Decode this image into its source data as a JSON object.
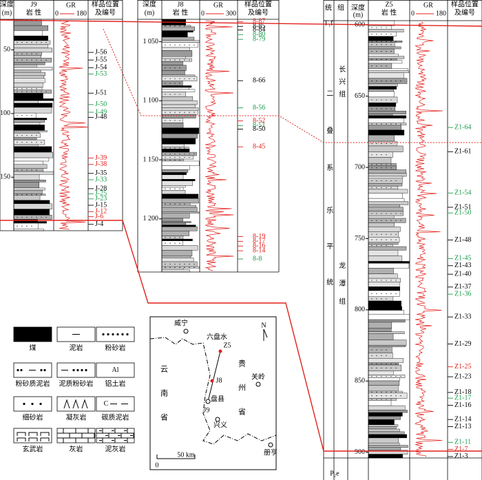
{
  "wells": [
    {
      "name": "J9",
      "depth_label": [
        "深度",
        "(m)"
      ],
      "lith_label": "岩 性",
      "gr_label": "GR",
      "gr_scale": [
        "0",
        "180"
      ],
      "sample_label": [
        "样品位置",
        "及编号"
      ],
      "ylim": [
        26,
        192
      ],
      "yticks": [
        50,
        100,
        150
      ],
      "samples": [
        {
          "id": "J-56",
          "depth": 52,
          "color": "#000000"
        },
        {
          "id": "J-55",
          "depth": 58,
          "color": "#000000"
        },
        {
          "id": "J-54",
          "depth": 64,
          "color": "#000000"
        },
        {
          "id": "J-53",
          "depth": 69,
          "color": "#1a9a4a"
        },
        {
          "id": "J-51",
          "depth": 84,
          "color": "#000000"
        },
        {
          "id": "J-50",
          "depth": 93,
          "color": "#1a9a4a"
        },
        {
          "id": "J-49",
          "depth": 99,
          "color": "#1a9a4a"
        },
        {
          "id": "J-48",
          "depth": 103,
          "color": "#000000"
        },
        {
          "id": "J-39",
          "depth": 135,
          "color": "#e0201c"
        },
        {
          "id": "J-38",
          "depth": 140,
          "color": "#e0201c"
        },
        {
          "id": "J-35",
          "depth": 147,
          "color": "#000000"
        },
        {
          "id": "J-33",
          "depth": 152,
          "color": "#1a9a4a"
        },
        {
          "id": "J-28",
          "depth": 159,
          "color": "#000000"
        },
        {
          "id": "J-25",
          "depth": 163,
          "color": "#1a9a4a"
        },
        {
          "id": "J-23",
          "depth": 167,
          "color": "#1a9a4a"
        },
        {
          "id": "J-15",
          "depth": 172,
          "color": "#000000"
        },
        {
          "id": "J-12",
          "depth": 177,
          "color": "#e0201c"
        },
        {
          "id": "J-6",
          "depth": 181,
          "color": "#e0201c"
        },
        {
          "id": "J-4",
          "depth": 187,
          "color": "#000000"
        }
      ]
    },
    {
      "name": "J8",
      "depth_label": [
        "深度",
        "(m)"
      ],
      "lith_label": "岩 性",
      "gr_label": "GR",
      "gr_scale": [
        "0",
        "300"
      ],
      "sample_label": [
        "样品位置",
        "及编号"
      ],
      "ylim": [
        1031,
        1245
      ],
      "yticks": [
        {
          "value": 1050,
          "label": "1 050"
        },
        {
          "value": 1100,
          "label": "1 100"
        },
        {
          "value": 1150,
          "label": "1 150"
        },
        {
          "value": 1200,
          "label": "1 200"
        }
      ],
      "samples": [
        {
          "id": "8-87",
          "depth": 1033,
          "color": "#e0201c"
        },
        {
          "id": "8-85",
          "depth": 1037,
          "color": "#000000"
        },
        {
          "id": "8-84",
          "depth": 1040,
          "color": "#000000"
        },
        {
          "id": "8-80",
          "depth": 1044,
          "color": "#1a9a4a"
        },
        {
          "id": "8-79",
          "depth": 1048,
          "color": "#1a9a4a"
        },
        {
          "id": "8-66",
          "depth": 1083,
          "color": "#000000"
        },
        {
          "id": "8-56",
          "depth": 1106,
          "color": "#1a9a4a"
        },
        {
          "id": "8-52",
          "depth": 1117,
          "color": "#e0201c"
        },
        {
          "id": "8-51",
          "depth": 1121,
          "color": "#1a9a4a"
        },
        {
          "id": "8-50",
          "depth": 1124,
          "color": "#000000"
        },
        {
          "id": "8-45",
          "depth": 1139,
          "color": "#e0201c"
        },
        {
          "id": "8-19",
          "depth": 1215,
          "color": "#e0201c"
        },
        {
          "id": "8-17",
          "depth": 1219,
          "color": "#e0201c"
        },
        {
          "id": "8-16",
          "depth": 1223,
          "color": "#e0201c"
        },
        {
          "id": "8-14",
          "depth": 1227,
          "color": "#e0201c"
        },
        {
          "id": "8-8",
          "depth": 1234,
          "color": "#1a9a4a"
        }
      ]
    },
    {
      "name": "Z5",
      "series_label": "统",
      "formation_label": "组",
      "depth_label": [
        "深度",
        "(m)"
      ],
      "lith_label": "岩 性",
      "gr_label": "GR",
      "gr_scale": [
        "0",
        "180"
      ],
      "sample_label": [
        "样品位置",
        "及编号"
      ],
      "ylim": [
        597,
        904
      ],
      "yticks": [
        600,
        650,
        700,
        750,
        800,
        850,
        900
      ],
      "samples": [
        {
          "id": "Z1-64",
          "depth": 672,
          "color": "#1a9a4a"
        },
        {
          "id": "Z1-61",
          "depth": 689,
          "color": "#000000"
        },
        {
          "id": "Z1-54",
          "depth": 718,
          "color": "#1a9a4a"
        },
        {
          "id": "Z1-51",
          "depth": 728,
          "color": "#000000"
        },
        {
          "id": "Z1-50",
          "depth": 732,
          "color": "#1a9a4a"
        },
        {
          "id": "Z1-48",
          "depth": 751,
          "color": "#000000"
        },
        {
          "id": "Z1-45",
          "depth": 764,
          "color": "#1a9a4a"
        },
        {
          "id": "Z1-43",
          "depth": 769,
          "color": "#000000"
        },
        {
          "id": "Z1-40",
          "depth": 775,
          "color": "#000000"
        },
        {
          "id": "Z1-37",
          "depth": 784,
          "color": "#000000"
        },
        {
          "id": "Z1-36",
          "depth": 789,
          "color": "#1a9a4a"
        },
        {
          "id": "Z1-33",
          "depth": 805,
          "color": "#000000"
        },
        {
          "id": "Z1-29",
          "depth": 824,
          "color": "#000000"
        },
        {
          "id": "Z1-25",
          "depth": 840,
          "color": "#e0201c"
        },
        {
          "id": "Z1-23",
          "depth": 847,
          "color": "#000000"
        },
        {
          "id": "Z1-18",
          "depth": 858,
          "color": "#000000"
        },
        {
          "id": "Z1-17",
          "depth": 862,
          "color": "#1a9a4a"
        },
        {
          "id": "Z1-16",
          "depth": 867,
          "color": "#000000"
        },
        {
          "id": "Z1-14",
          "depth": 877,
          "color": "#000000"
        },
        {
          "id": "Z1-13",
          "depth": 882,
          "color": "#000000"
        },
        {
          "id": "Z1-11",
          "depth": 893,
          "color": "#1a9a4a"
        },
        {
          "id": "Z1-7",
          "depth": 898,
          "color": "#e0201c"
        },
        {
          "id": "Z1-3",
          "depth": 903,
          "color": "#000000"
        }
      ]
    }
  ],
  "stratigraphy": {
    "top": "T₁f",
    "bottom": "P₂e",
    "system": "二叠系",
    "series": "乐平统",
    "formation_upper": "长兴组",
    "formation_lower": "龙潭组"
  },
  "legend": [
    {
      "label": "煤"
    },
    {
      "label": "泥岩"
    },
    {
      "label": "粉砂岩"
    },
    {
      "label": "粉砂质泥岩"
    },
    {
      "label": "泥质粉砂岩"
    },
    {
      "label": "铝土岩",
      "symbol": "Al"
    },
    {
      "label": "细砂岩"
    },
    {
      "label": "凝灰岩"
    },
    {
      "label": "碳质泥岩",
      "symbol": "C"
    },
    {
      "label": "玄武岩"
    },
    {
      "label": "灰岩"
    },
    {
      "label": "泥灰岩"
    }
  ],
  "map": {
    "places": [
      "威宁",
      "六盘水",
      "关岭",
      "盘县",
      "兴义",
      "册亨"
    ],
    "wells": [
      "Z5",
      "J8",
      "J9"
    ],
    "provinces": [
      "云南省",
      "贵州省"
    ],
    "north": "N",
    "scale": [
      "0",
      "50 km"
    ]
  }
}
